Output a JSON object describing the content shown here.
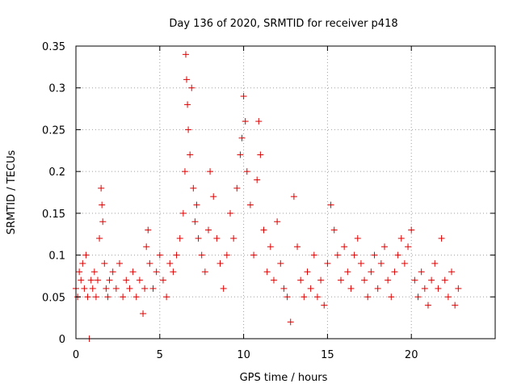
{
  "chart_data": {
    "type": "scatter",
    "title": "Day 136 of 2020, SRMTID for receiver p418",
    "xlabel": "GPS time / hours",
    "ylabel": "SRMTID / TECUs",
    "xlim": [
      0,
      25
    ],
    "ylim": [
      0,
      0.35
    ],
    "x_ticks": [
      0,
      5,
      10,
      15,
      20
    ],
    "x_tick_labels": [
      "0",
      "5",
      "10",
      "15",
      "20"
    ],
    "y_ticks": [
      0,
      0.05,
      0.1,
      0.15,
      0.2,
      0.25,
      0.3,
      0.35
    ],
    "y_tick_labels": [
      "0",
      "0.05",
      "0.1",
      "0.15",
      "0.2",
      "0.25",
      "0.3",
      "0.35"
    ],
    "grid": true,
    "marker": "+",
    "color": "#e00000",
    "series": [
      {
        "name": "SRMTID",
        "points": [
          [
            0.0,
            0.06
          ],
          [
            0.1,
            0.05
          ],
          [
            0.2,
            0.08
          ],
          [
            0.3,
            0.07
          ],
          [
            0.4,
            0.09
          ],
          [
            0.5,
            0.06
          ],
          [
            0.6,
            0.1
          ],
          [
            0.7,
            0.05
          ],
          [
            0.8,
            0.0
          ],
          [
            0.9,
            0.07
          ],
          [
            1.0,
            0.06
          ],
          [
            1.1,
            0.08
          ],
          [
            1.2,
            0.05
          ],
          [
            1.3,
            0.07
          ],
          [
            1.4,
            0.12
          ],
          [
            1.5,
            0.18
          ],
          [
            1.55,
            0.16
          ],
          [
            1.6,
            0.14
          ],
          [
            1.7,
            0.09
          ],
          [
            1.8,
            0.06
          ],
          [
            1.9,
            0.05
          ],
          [
            2.0,
            0.07
          ],
          [
            2.2,
            0.08
          ],
          [
            2.4,
            0.06
          ],
          [
            2.6,
            0.09
          ],
          [
            2.8,
            0.05
          ],
          [
            3.0,
            0.07
          ],
          [
            3.2,
            0.06
          ],
          [
            3.4,
            0.08
          ],
          [
            3.6,
            0.05
          ],
          [
            3.8,
            0.07
          ],
          [
            4.0,
            0.03
          ],
          [
            4.1,
            0.06
          ],
          [
            4.2,
            0.11
          ],
          [
            4.3,
            0.13
          ],
          [
            4.4,
            0.09
          ],
          [
            4.6,
            0.06
          ],
          [
            4.8,
            0.08
          ],
          [
            5.0,
            0.1
          ],
          [
            5.2,
            0.07
          ],
          [
            5.4,
            0.05
          ],
          [
            5.6,
            0.09
          ],
          [
            5.8,
            0.08
          ],
          [
            6.0,
            0.1
          ],
          [
            6.2,
            0.12
          ],
          [
            6.4,
            0.15
          ],
          [
            6.5,
            0.2
          ],
          [
            6.55,
            0.34
          ],
          [
            6.6,
            0.31
          ],
          [
            6.65,
            0.28
          ],
          [
            6.7,
            0.25
          ],
          [
            6.8,
            0.22
          ],
          [
            6.9,
            0.3
          ],
          [
            7.0,
            0.18
          ],
          [
            7.1,
            0.14
          ],
          [
            7.2,
            0.16
          ],
          [
            7.3,
            0.12
          ],
          [
            7.5,
            0.1
          ],
          [
            7.7,
            0.08
          ],
          [
            7.9,
            0.13
          ],
          [
            8.0,
            0.2
          ],
          [
            8.2,
            0.17
          ],
          [
            8.4,
            0.12
          ],
          [
            8.6,
            0.09
          ],
          [
            8.8,
            0.06
          ],
          [
            9.0,
            0.1
          ],
          [
            9.2,
            0.15
          ],
          [
            9.4,
            0.12
          ],
          [
            9.6,
            0.18
          ],
          [
            9.8,
            0.22
          ],
          [
            9.9,
            0.24
          ],
          [
            10.0,
            0.29
          ],
          [
            10.1,
            0.26
          ],
          [
            10.2,
            0.2
          ],
          [
            10.4,
            0.16
          ],
          [
            10.6,
            0.1
          ],
          [
            10.8,
            0.19
          ],
          [
            10.9,
            0.26
          ],
          [
            11.0,
            0.22
          ],
          [
            11.2,
            0.13
          ],
          [
            11.4,
            0.08
          ],
          [
            11.6,
            0.11
          ],
          [
            11.8,
            0.07
          ],
          [
            12.0,
            0.14
          ],
          [
            12.2,
            0.09
          ],
          [
            12.4,
            0.06
          ],
          [
            12.6,
            0.05
          ],
          [
            12.8,
            0.02
          ],
          [
            13.0,
            0.17
          ],
          [
            13.2,
            0.11
          ],
          [
            13.4,
            0.07
          ],
          [
            13.6,
            0.05
          ],
          [
            13.8,
            0.08
          ],
          [
            14.0,
            0.06
          ],
          [
            14.2,
            0.1
          ],
          [
            14.4,
            0.05
          ],
          [
            14.6,
            0.07
          ],
          [
            14.8,
            0.04
          ],
          [
            15.0,
            0.09
          ],
          [
            15.2,
            0.16
          ],
          [
            15.4,
            0.13
          ],
          [
            15.6,
            0.1
          ],
          [
            15.8,
            0.07
          ],
          [
            16.0,
            0.11
          ],
          [
            16.2,
            0.08
          ],
          [
            16.4,
            0.06
          ],
          [
            16.6,
            0.1
          ],
          [
            16.8,
            0.12
          ],
          [
            17.0,
            0.09
          ],
          [
            17.2,
            0.07
          ],
          [
            17.4,
            0.05
          ],
          [
            17.6,
            0.08
          ],
          [
            17.8,
            0.1
          ],
          [
            18.0,
            0.06
          ],
          [
            18.2,
            0.09
          ],
          [
            18.4,
            0.11
          ],
          [
            18.6,
            0.07
          ],
          [
            18.8,
            0.05
          ],
          [
            19.0,
            0.08
          ],
          [
            19.2,
            0.1
          ],
          [
            19.4,
            0.12
          ],
          [
            19.6,
            0.09
          ],
          [
            19.8,
            0.11
          ],
          [
            20.0,
            0.13
          ],
          [
            20.2,
            0.07
          ],
          [
            20.4,
            0.05
          ],
          [
            20.6,
            0.08
          ],
          [
            20.8,
            0.06
          ],
          [
            21.0,
            0.04
          ],
          [
            21.2,
            0.07
          ],
          [
            21.4,
            0.09
          ],
          [
            21.6,
            0.06
          ],
          [
            21.8,
            0.12
          ],
          [
            22.0,
            0.07
          ],
          [
            22.2,
            0.05
          ],
          [
            22.4,
            0.08
          ],
          [
            22.6,
            0.04
          ],
          [
            22.8,
            0.06
          ]
        ]
      }
    ]
  }
}
